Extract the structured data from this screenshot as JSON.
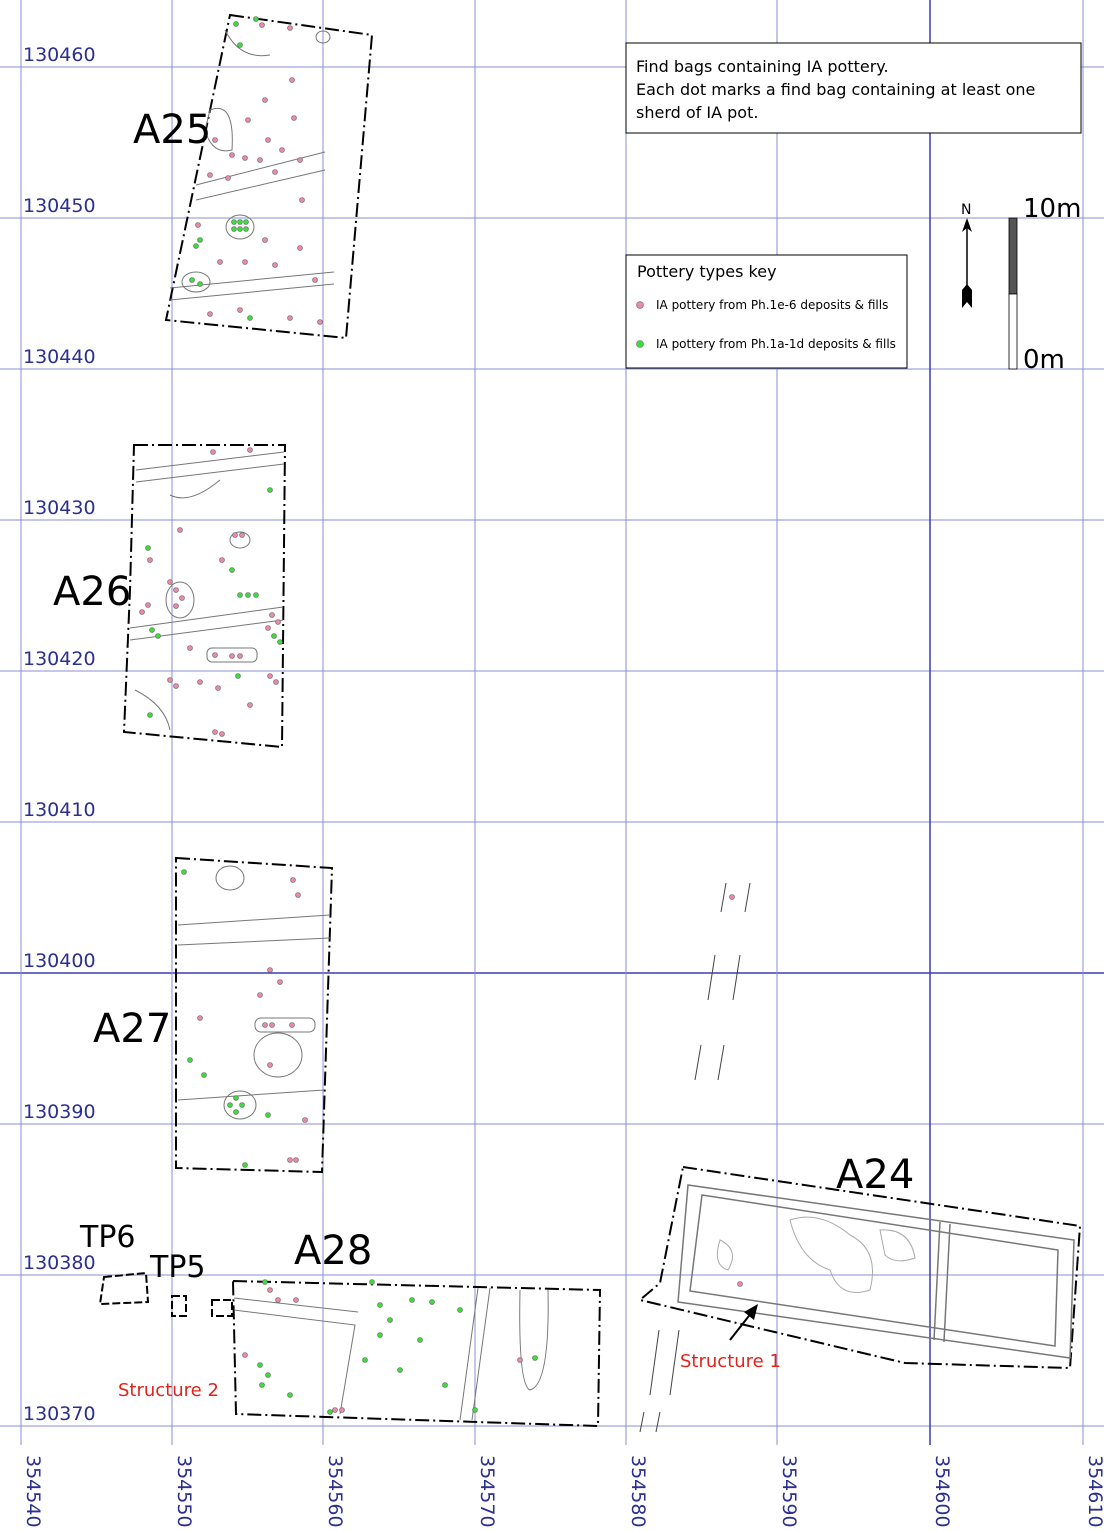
{
  "grid": {
    "northings": [
      "130460",
      "130450",
      "130440",
      "130430",
      "130420",
      "130410",
      "130400",
      "130390",
      "130380",
      "130370"
    ],
    "eastings": [
      "354540",
      "354550",
      "354560",
      "354570",
      "354580",
      "354590",
      "354600",
      "354610"
    ],
    "line_color": "#8a8fd6",
    "accent_line_color": "#3b3fb0"
  },
  "areas": {
    "a25": "A25",
    "a26": "A26",
    "a27": "A27",
    "a24": "A24",
    "a28": "A28",
    "tp6": "TP6",
    "tp5": "TP5"
  },
  "structures": {
    "structure_1": "Structure 1",
    "structure_2": "Structure 2",
    "color": "#e2231a"
  },
  "info_box": {
    "lines": [
      "Find bags containing IA pottery.",
      "Each dot marks a find bag containing at least one",
      "sherd of IA pot."
    ]
  },
  "key": {
    "title": "Pottery types key",
    "items": [
      {
        "label": "IA pottery from Ph.1e-6 deposits & fills",
        "color": "#e88aa6"
      },
      {
        "label": "IA pottery from Ph.1a-1d deposits & fills",
        "color": "#3ddc3d"
      }
    ]
  },
  "north_arrow": {
    "label": "N"
  },
  "scale_bar": {
    "top_label": "10m",
    "bottom_label": "0m"
  }
}
